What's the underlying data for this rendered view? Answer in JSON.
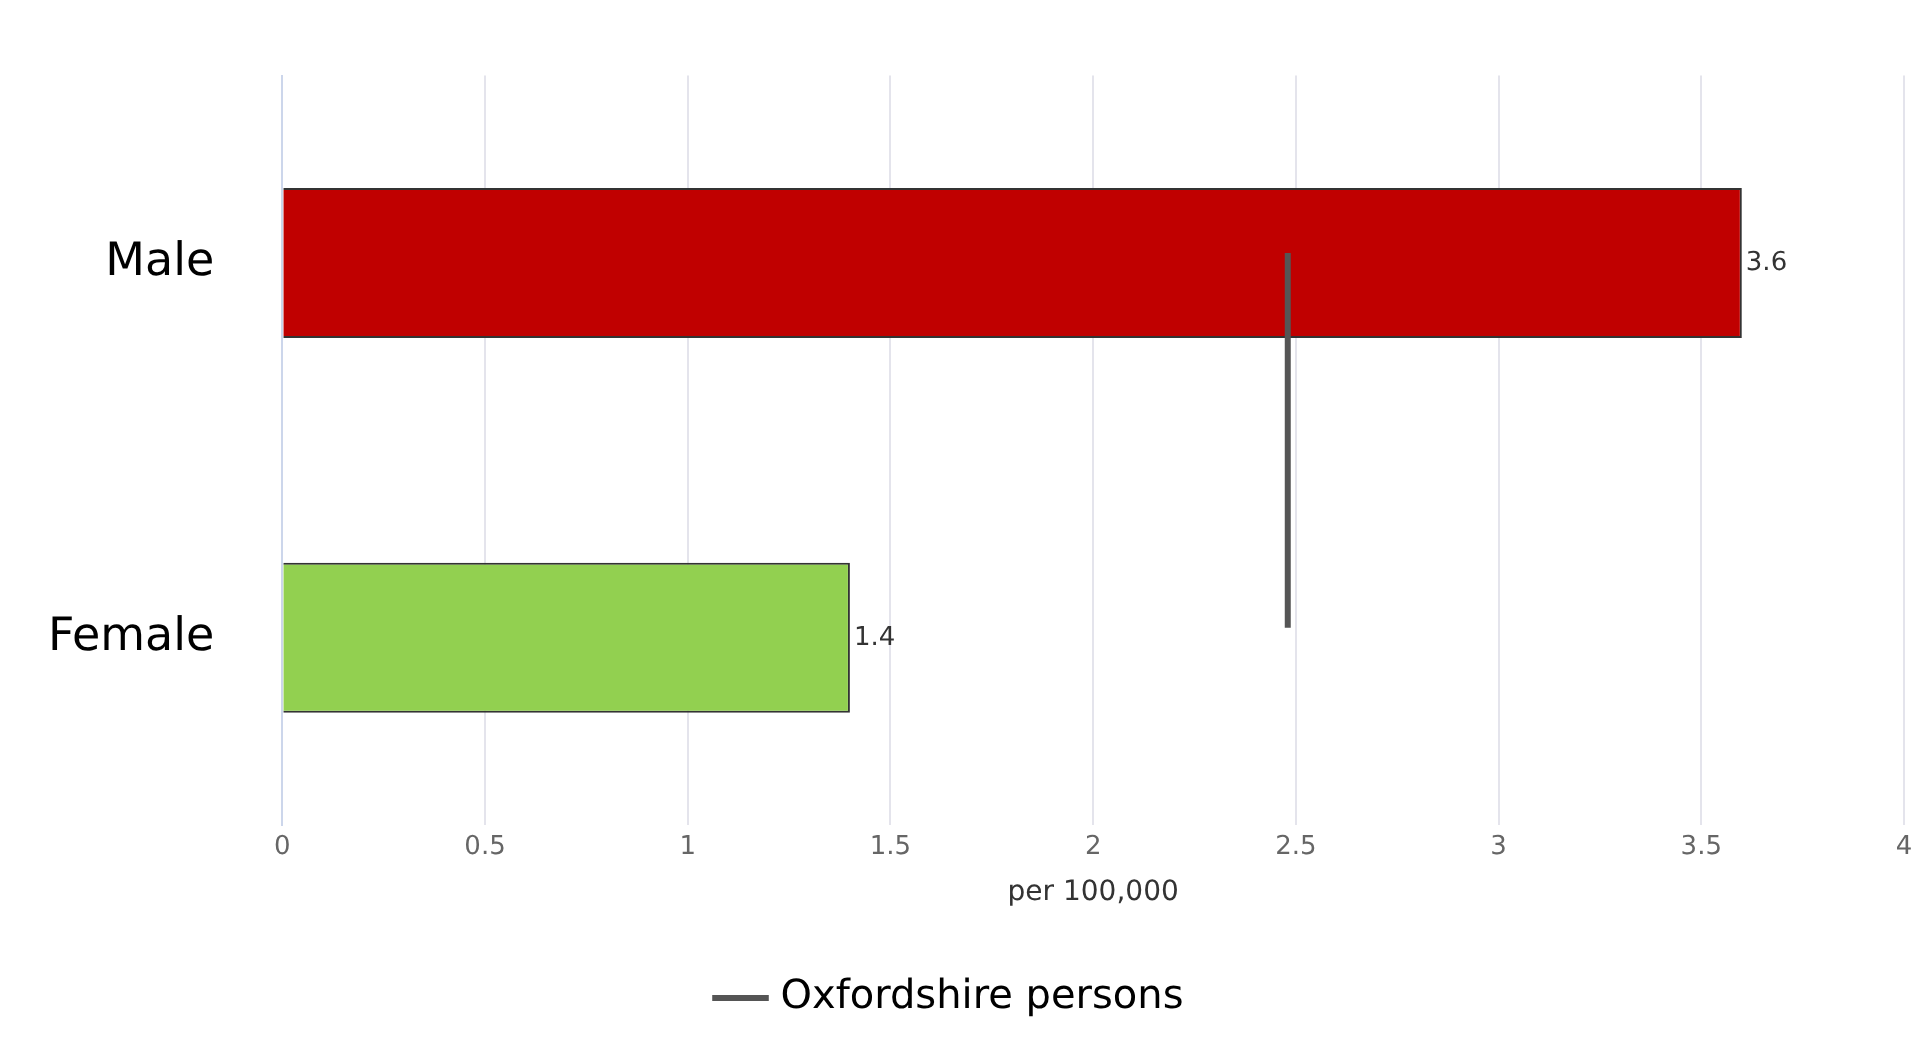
{
  "chart_data": {
    "type": "bar",
    "orientation": "horizontal",
    "categories": [
      "Male",
      "Female"
    ],
    "values": [
      3.6,
      1.4
    ],
    "colors": [
      "#c00000",
      "#92d050"
    ],
    "xlabel": "per 100,000",
    "xlim": [
      0,
      4
    ],
    "xticks": [
      0,
      0.5,
      1,
      1.5,
      2,
      2.5,
      3,
      3.5,
      4
    ],
    "grid": "x",
    "data_labels": true,
    "legend": "bottom",
    "ref_lines": [
      {
        "axis": "x",
        "value": 2.48,
        "label": "Oxfordshire persons",
        "color": "#555555"
      }
    ]
  }
}
